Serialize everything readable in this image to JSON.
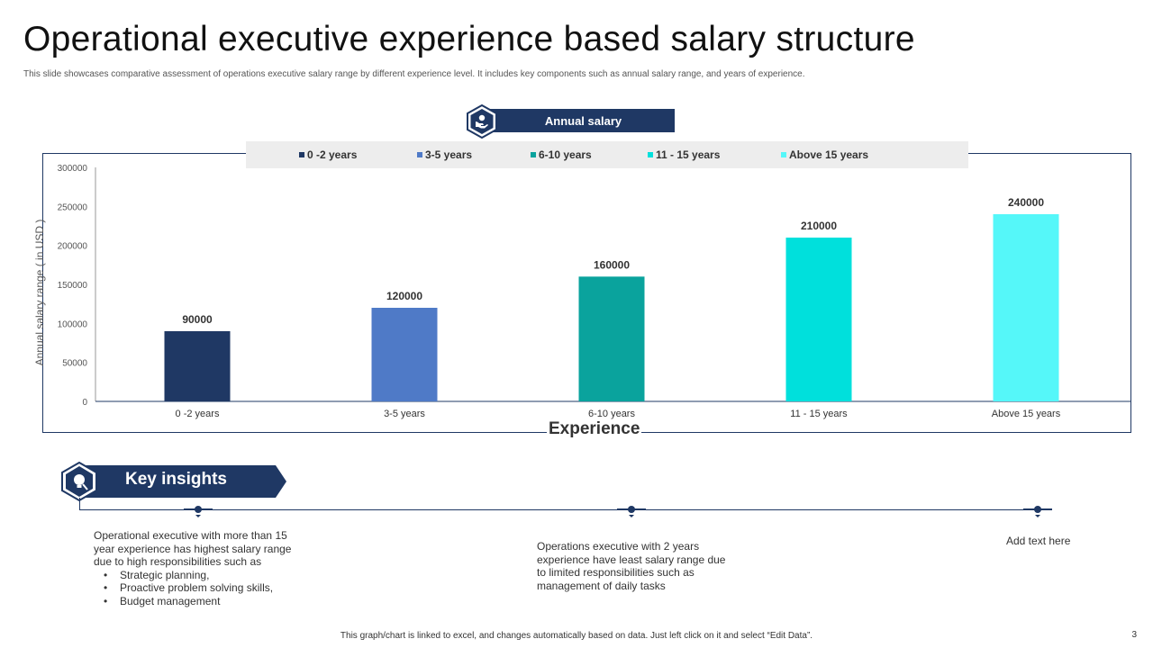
{
  "page": {
    "title": "Operational executive experience based salary structure",
    "subtitle": "This slide showcases comparative assessment of operations executive salary range by different experience level. It includes key components such as annual salary range, and years of experience.",
    "badge_label": "Annual salary",
    "footer": "This graph/chart is linked to excel, and changes automatically based on data. Just left click on it and select “Edit Data”.",
    "page_number": "3"
  },
  "chart_data": {
    "type": "bar",
    "categories": [
      "0 -2 years",
      "3-5 years",
      "6-10 years",
      "11 - 15 years",
      "Above 15 years"
    ],
    "values": [
      90000,
      120000,
      160000,
      210000,
      240000
    ],
    "value_labels": [
      "90000",
      "120000",
      "160000",
      "210000",
      "240000"
    ],
    "colors": [
      "#1f3864",
      "#4f7ac7",
      "#0aa39d",
      "#00e0dc",
      "#55f7f9"
    ],
    "legend": [
      "0 -2 years",
      "3-5 years",
      "6-10 years",
      "11 - 15 years",
      "Above 15 years"
    ],
    "legend_position": "top",
    "xlabel": "Experience",
    "ylabel": "Annual salary range ( in USD )",
    "ylim": [
      0,
      300000
    ],
    "yticks": [
      "0",
      "50000",
      "100000",
      "150000",
      "200000",
      "250000",
      "300000"
    ],
    "grid": false
  },
  "insights": {
    "heading": "Key insights",
    "item1_lines": [
      "Operational executive with more than 15",
      "year experience has highest salary range",
      "due to high responsibilities such as"
    ],
    "item1_bullets": [
      "Strategic planning,",
      "Proactive problem solving skills,",
      "Budget management"
    ],
    "item2_lines": [
      "Operations executive with 2 years",
      "experience have least salary range due",
      "to limited responsibilities such as",
      "management of daily tasks"
    ],
    "item3": "Add text here"
  },
  "icons": {
    "badge": "hand-holding-money-icon",
    "insights": "lightbulb-magnifier-icon"
  }
}
